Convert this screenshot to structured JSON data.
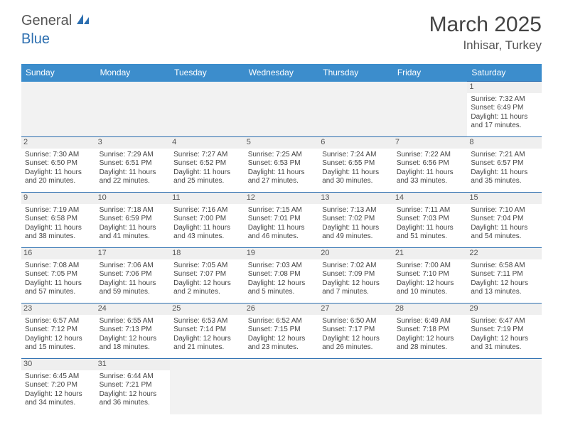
{
  "logo": {
    "general": "General",
    "blue": "Blue"
  },
  "title": "March 2025",
  "location": "Inhisar, Turkey",
  "colors": {
    "header_bg": "#3c8dcc",
    "border": "#2d6fb0",
    "daynum_bg": "#efefef",
    "text": "#444444"
  },
  "weekdays": [
    "Sunday",
    "Monday",
    "Tuesday",
    "Wednesday",
    "Thursday",
    "Friday",
    "Saturday"
  ],
  "days": {
    "1": {
      "sunrise": "7:32 AM",
      "sunset": "6:49 PM",
      "daylight": "11 hours and 17 minutes."
    },
    "2": {
      "sunrise": "7:30 AM",
      "sunset": "6:50 PM",
      "daylight": "11 hours and 20 minutes."
    },
    "3": {
      "sunrise": "7:29 AM",
      "sunset": "6:51 PM",
      "daylight": "11 hours and 22 minutes."
    },
    "4": {
      "sunrise": "7:27 AM",
      "sunset": "6:52 PM",
      "daylight": "11 hours and 25 minutes."
    },
    "5": {
      "sunrise": "7:25 AM",
      "sunset": "6:53 PM",
      "daylight": "11 hours and 27 minutes."
    },
    "6": {
      "sunrise": "7:24 AM",
      "sunset": "6:55 PM",
      "daylight": "11 hours and 30 minutes."
    },
    "7": {
      "sunrise": "7:22 AM",
      "sunset": "6:56 PM",
      "daylight": "11 hours and 33 minutes."
    },
    "8": {
      "sunrise": "7:21 AM",
      "sunset": "6:57 PM",
      "daylight": "11 hours and 35 minutes."
    },
    "9": {
      "sunrise": "7:19 AM",
      "sunset": "6:58 PM",
      "daylight": "11 hours and 38 minutes."
    },
    "10": {
      "sunrise": "7:18 AM",
      "sunset": "6:59 PM",
      "daylight": "11 hours and 41 minutes."
    },
    "11": {
      "sunrise": "7:16 AM",
      "sunset": "7:00 PM",
      "daylight": "11 hours and 43 minutes."
    },
    "12": {
      "sunrise": "7:15 AM",
      "sunset": "7:01 PM",
      "daylight": "11 hours and 46 minutes."
    },
    "13": {
      "sunrise": "7:13 AM",
      "sunset": "7:02 PM",
      "daylight": "11 hours and 49 minutes."
    },
    "14": {
      "sunrise": "7:11 AM",
      "sunset": "7:03 PM",
      "daylight": "11 hours and 51 minutes."
    },
    "15": {
      "sunrise": "7:10 AM",
      "sunset": "7:04 PM",
      "daylight": "11 hours and 54 minutes."
    },
    "16": {
      "sunrise": "7:08 AM",
      "sunset": "7:05 PM",
      "daylight": "11 hours and 57 minutes."
    },
    "17": {
      "sunrise": "7:06 AM",
      "sunset": "7:06 PM",
      "daylight": "11 hours and 59 minutes."
    },
    "18": {
      "sunrise": "7:05 AM",
      "sunset": "7:07 PM",
      "daylight": "12 hours and 2 minutes."
    },
    "19": {
      "sunrise": "7:03 AM",
      "sunset": "7:08 PM",
      "daylight": "12 hours and 5 minutes."
    },
    "20": {
      "sunrise": "7:02 AM",
      "sunset": "7:09 PM",
      "daylight": "12 hours and 7 minutes."
    },
    "21": {
      "sunrise": "7:00 AM",
      "sunset": "7:10 PM",
      "daylight": "12 hours and 10 minutes."
    },
    "22": {
      "sunrise": "6:58 AM",
      "sunset": "7:11 PM",
      "daylight": "12 hours and 13 minutes."
    },
    "23": {
      "sunrise": "6:57 AM",
      "sunset": "7:12 PM",
      "daylight": "12 hours and 15 minutes."
    },
    "24": {
      "sunrise": "6:55 AM",
      "sunset": "7:13 PM",
      "daylight": "12 hours and 18 minutes."
    },
    "25": {
      "sunrise": "6:53 AM",
      "sunset": "7:14 PM",
      "daylight": "12 hours and 21 minutes."
    },
    "26": {
      "sunrise": "6:52 AM",
      "sunset": "7:15 PM",
      "daylight": "12 hours and 23 minutes."
    },
    "27": {
      "sunrise": "6:50 AM",
      "sunset": "7:17 PM",
      "daylight": "12 hours and 26 minutes."
    },
    "28": {
      "sunrise": "6:49 AM",
      "sunset": "7:18 PM",
      "daylight": "12 hours and 28 minutes."
    },
    "29": {
      "sunrise": "6:47 AM",
      "sunset": "7:19 PM",
      "daylight": "12 hours and 31 minutes."
    },
    "30": {
      "sunrise": "6:45 AM",
      "sunset": "7:20 PM",
      "daylight": "12 hours and 34 minutes."
    },
    "31": {
      "sunrise": "6:44 AM",
      "sunset": "7:21 PM",
      "daylight": "12 hours and 36 minutes."
    }
  },
  "labels": {
    "sunrise": "Sunrise:",
    "sunset": "Sunset:",
    "daylight": "Daylight:"
  },
  "grid": [
    [
      null,
      null,
      null,
      null,
      null,
      null,
      "1"
    ],
    [
      "2",
      "3",
      "4",
      "5",
      "6",
      "7",
      "8"
    ],
    [
      "9",
      "10",
      "11",
      "12",
      "13",
      "14",
      "15"
    ],
    [
      "16",
      "17",
      "18",
      "19",
      "20",
      "21",
      "22"
    ],
    [
      "23",
      "24",
      "25",
      "26",
      "27",
      "28",
      "29"
    ],
    [
      "30",
      "31",
      null,
      null,
      null,
      null,
      null
    ]
  ]
}
